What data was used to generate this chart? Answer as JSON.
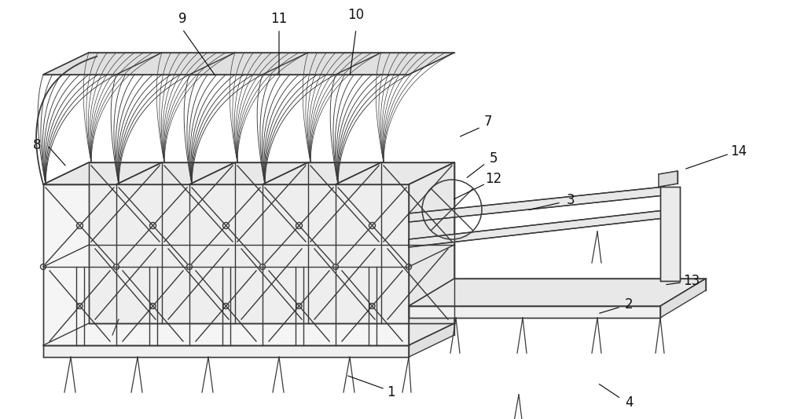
{
  "bg_color": "#ffffff",
  "line_color": "#3a3a3a",
  "line_width": 1.0,
  "label_fontsize": 12,
  "label_color": "#111111"
}
